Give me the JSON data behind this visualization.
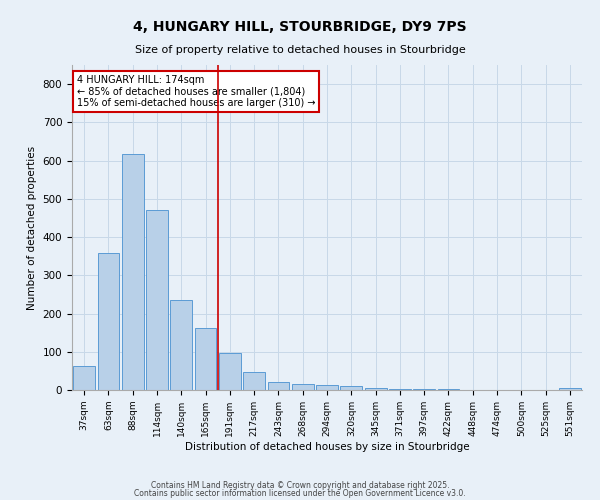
{
  "title1": "4, HUNGARY HILL, STOURBRIDGE, DY9 7PS",
  "title2": "Size of property relative to detached houses in Stourbridge",
  "xlabel": "Distribution of detached houses by size in Stourbridge",
  "ylabel": "Number of detached properties",
  "categories": [
    "37sqm",
    "63sqm",
    "88sqm",
    "114sqm",
    "140sqm",
    "165sqm",
    "191sqm",
    "217sqm",
    "243sqm",
    "268sqm",
    "294sqm",
    "320sqm",
    "345sqm",
    "371sqm",
    "397sqm",
    "422sqm",
    "448sqm",
    "474sqm",
    "500sqm",
    "525sqm",
    "551sqm"
  ],
  "values": [
    62,
    358,
    617,
    470,
    235,
    163,
    98,
    47,
    20,
    17,
    14,
    11,
    4,
    3,
    2,
    2,
    1,
    1,
    1,
    1,
    5
  ],
  "bar_color": "#b8d0e8",
  "bar_edge_color": "#5b9bd5",
  "vline_x": 5.5,
  "vline_color": "#cc0000",
  "annotation_text": "4 HUNGARY HILL: 174sqm\n← 85% of detached houses are smaller (1,804)\n15% of semi-detached houses are larger (310) →",
  "annotation_box_color": "#ffffff",
  "annotation_box_edge": "#cc0000",
  "ylim": [
    0,
    850
  ],
  "yticks": [
    0,
    100,
    200,
    300,
    400,
    500,
    600,
    700,
    800
  ],
  "grid_color": "#c8d8e8",
  "bg_color": "#e8f0f8",
  "footer1": "Contains HM Land Registry data © Crown copyright and database right 2025.",
  "footer2": "Contains public sector information licensed under the Open Government Licence v3.0."
}
